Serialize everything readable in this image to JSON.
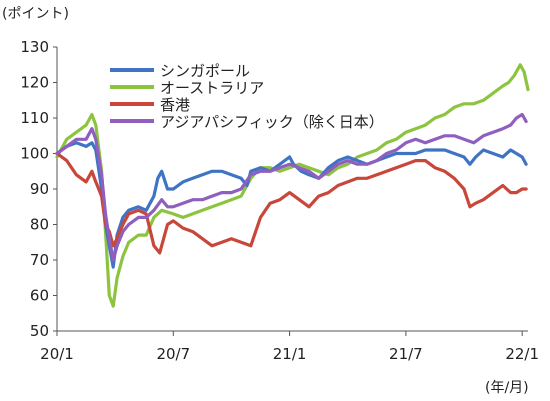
{
  "chart_data": {
    "type": "line",
    "title": "",
    "ylabel": "(ポイント)",
    "xlabel": "(年/月)",
    "ylim": [
      50,
      130
    ],
    "yticks": [
      50,
      60,
      70,
      80,
      90,
      100,
      110,
      120,
      130
    ],
    "xticks": [
      {
        "label": "20/1",
        "t": 0
      },
      {
        "label": "20/7",
        "t": 6
      },
      {
        "label": "21/1",
        "t": 12
      },
      {
        "label": "21/7",
        "t": 18
      },
      {
        "label": "22/1",
        "t": 24
      }
    ],
    "xlim": [
      0,
      24.3
    ],
    "grid": false,
    "legend_position": "top-center",
    "series": [
      {
        "name": "シンガポール",
        "color": "#3f73c4",
        "points": [
          [
            0,
            100
          ],
          [
            0.5,
            102
          ],
          [
            1,
            103
          ],
          [
            1.5,
            102
          ],
          [
            1.8,
            103
          ],
          [
            2,
            101
          ],
          [
            2.3,
            90
          ],
          [
            2.5,
            80
          ],
          [
            2.7,
            74
          ],
          [
            2.9,
            68
          ],
          [
            3.1,
            77
          ],
          [
            3.4,
            82
          ],
          [
            3.7,
            84
          ],
          [
            4.2,
            85
          ],
          [
            4.6,
            84
          ],
          [
            5,
            88
          ],
          [
            5.2,
            93
          ],
          [
            5.4,
            95
          ],
          [
            5.7,
            90
          ],
          [
            6,
            90
          ],
          [
            6.5,
            92
          ],
          [
            7,
            93
          ],
          [
            7.5,
            94
          ],
          [
            8,
            95
          ],
          [
            8.5,
            95
          ],
          [
            9,
            94
          ],
          [
            9.5,
            93
          ],
          [
            9.8,
            91
          ],
          [
            10,
            95
          ],
          [
            10.5,
            96
          ],
          [
            11,
            95
          ],
          [
            11.5,
            97
          ],
          [
            12,
            99
          ],
          [
            12.2,
            97
          ],
          [
            12.6,
            95
          ],
          [
            13,
            94
          ],
          [
            13.5,
            93
          ],
          [
            14,
            96
          ],
          [
            14.5,
            98
          ],
          [
            15,
            99
          ],
          [
            15.5,
            98
          ],
          [
            16,
            97
          ],
          [
            16.5,
            98
          ],
          [
            17,
            99
          ],
          [
            17.5,
            100
          ],
          [
            18,
            100
          ],
          [
            18.5,
            100
          ],
          [
            19,
            101
          ],
          [
            19.5,
            101
          ],
          [
            20,
            101
          ],
          [
            20.5,
            100
          ],
          [
            21,
            99
          ],
          [
            21.3,
            97
          ],
          [
            21.6,
            99
          ],
          [
            22,
            101
          ],
          [
            22.5,
            100
          ],
          [
            23,
            99
          ],
          [
            23.4,
            101
          ],
          [
            23.7,
            100
          ],
          [
            24,
            99
          ],
          [
            24.2,
            97
          ]
        ]
      },
      {
        "name": "オーストラリア",
        "color": "#8dc43f",
        "points": [
          [
            0,
            99
          ],
          [
            0.5,
            104
          ],
          [
            1,
            106
          ],
          [
            1.5,
            108
          ],
          [
            1.8,
            111
          ],
          [
            2,
            108
          ],
          [
            2.3,
            95
          ],
          [
            2.5,
            78
          ],
          [
            2.7,
            60
          ],
          [
            2.9,
            57
          ],
          [
            3.1,
            65
          ],
          [
            3.4,
            71
          ],
          [
            3.7,
            75
          ],
          [
            4.2,
            77
          ],
          [
            4.6,
            77
          ],
          [
            5,
            82
          ],
          [
            5.4,
            84
          ],
          [
            6,
            83
          ],
          [
            6.5,
            82
          ],
          [
            7,
            83
          ],
          [
            7.5,
            84
          ],
          [
            8,
            85
          ],
          [
            8.5,
            86
          ],
          [
            9,
            87
          ],
          [
            9.5,
            88
          ],
          [
            10,
            93
          ],
          [
            10.5,
            96
          ],
          [
            11,
            96
          ],
          [
            11.5,
            95
          ],
          [
            12,
            96
          ],
          [
            12.5,
            97
          ],
          [
            13,
            96
          ],
          [
            13.5,
            95
          ],
          [
            14,
            94
          ],
          [
            14.5,
            96
          ],
          [
            15,
            97
          ],
          [
            15.5,
            99
          ],
          [
            16,
            100
          ],
          [
            16.5,
            101
          ],
          [
            17,
            103
          ],
          [
            17.5,
            104
          ],
          [
            18,
            106
          ],
          [
            18.5,
            107
          ],
          [
            19,
            108
          ],
          [
            19.5,
            110
          ],
          [
            20,
            111
          ],
          [
            20.5,
            113
          ],
          [
            21,
            114
          ],
          [
            21.5,
            114
          ],
          [
            22,
            115
          ],
          [
            22.5,
            117
          ],
          [
            23,
            119
          ],
          [
            23.3,
            120
          ],
          [
            23.6,
            122
          ],
          [
            23.9,
            125
          ],
          [
            24.1,
            123
          ],
          [
            24.3,
            118
          ]
        ]
      },
      {
        "name": "香港",
        "color": "#c8473a",
        "points": [
          [
            0,
            100
          ],
          [
            0.5,
            98
          ],
          [
            1,
            94
          ],
          [
            1.5,
            92
          ],
          [
            1.8,
            95
          ],
          [
            2,
            92
          ],
          [
            2.3,
            88
          ],
          [
            2.5,
            80
          ],
          [
            2.7,
            78
          ],
          [
            2.9,
            74
          ],
          [
            3.1,
            76
          ],
          [
            3.4,
            80
          ],
          [
            3.7,
            83
          ],
          [
            4.2,
            84
          ],
          [
            4.6,
            83
          ],
          [
            5,
            74
          ],
          [
            5.3,
            72
          ],
          [
            5.7,
            80
          ],
          [
            6,
            81
          ],
          [
            6.5,
            79
          ],
          [
            7,
            78
          ],
          [
            7.5,
            76
          ],
          [
            8,
            74
          ],
          [
            8.5,
            75
          ],
          [
            9,
            76
          ],
          [
            9.5,
            75
          ],
          [
            10,
            74
          ],
          [
            10.5,
            82
          ],
          [
            11,
            86
          ],
          [
            11.5,
            87
          ],
          [
            12,
            89
          ],
          [
            12.5,
            87
          ],
          [
            13,
            85
          ],
          [
            13.5,
            88
          ],
          [
            14,
            89
          ],
          [
            14.5,
            91
          ],
          [
            15,
            92
          ],
          [
            15.5,
            93
          ],
          [
            16,
            93
          ],
          [
            16.5,
            94
          ],
          [
            17,
            95
          ],
          [
            17.5,
            96
          ],
          [
            18,
            97
          ],
          [
            18.5,
            98
          ],
          [
            19,
            98
          ],
          [
            19.5,
            96
          ],
          [
            20,
            95
          ],
          [
            20.5,
            93
          ],
          [
            21,
            90
          ],
          [
            21.3,
            85
          ],
          [
            21.6,
            86
          ],
          [
            22,
            87
          ],
          [
            22.5,
            89
          ],
          [
            23,
            91
          ],
          [
            23.4,
            89
          ],
          [
            23.7,
            89
          ],
          [
            24,
            90
          ],
          [
            24.2,
            90
          ]
        ]
      },
      {
        "name": "アジアパシフィック（除く日本）",
        "color": "#8f5fbf",
        "points": [
          [
            0,
            100
          ],
          [
            0.5,
            102
          ],
          [
            1,
            104
          ],
          [
            1.5,
            104
          ],
          [
            1.8,
            107
          ],
          [
            2,
            104
          ],
          [
            2.3,
            94
          ],
          [
            2.5,
            83
          ],
          [
            2.7,
            76
          ],
          [
            2.9,
            70
          ],
          [
            3.1,
            74
          ],
          [
            3.4,
            78
          ],
          [
            3.7,
            80
          ],
          [
            4.2,
            82
          ],
          [
            4.6,
            82
          ],
          [
            5,
            84
          ],
          [
            5.4,
            87
          ],
          [
            5.7,
            85
          ],
          [
            6,
            85
          ],
          [
            6.5,
            86
          ],
          [
            7,
            87
          ],
          [
            7.5,
            87
          ],
          [
            8,
            88
          ],
          [
            8.5,
            89
          ],
          [
            9,
            89
          ],
          [
            9.5,
            90
          ],
          [
            10,
            94
          ],
          [
            10.5,
            95
          ],
          [
            11,
            95
          ],
          [
            11.5,
            96
          ],
          [
            12,
            97
          ],
          [
            12.5,
            96
          ],
          [
            13,
            95
          ],
          [
            13.5,
            93
          ],
          [
            14,
            95
          ],
          [
            14.5,
            97
          ],
          [
            15,
            98
          ],
          [
            15.5,
            97
          ],
          [
            16,
            97
          ],
          [
            16.5,
            98
          ],
          [
            17,
            100
          ],
          [
            17.5,
            101
          ],
          [
            18,
            103
          ],
          [
            18.5,
            104
          ],
          [
            19,
            103
          ],
          [
            19.5,
            104
          ],
          [
            20,
            105
          ],
          [
            20.5,
            105
          ],
          [
            21,
            104
          ],
          [
            21.5,
            103
          ],
          [
            22,
            105
          ],
          [
            22.5,
            106
          ],
          [
            23,
            107
          ],
          [
            23.4,
            108
          ],
          [
            23.7,
            110
          ],
          [
            24,
            111
          ],
          [
            24.2,
            109
          ]
        ]
      }
    ]
  }
}
